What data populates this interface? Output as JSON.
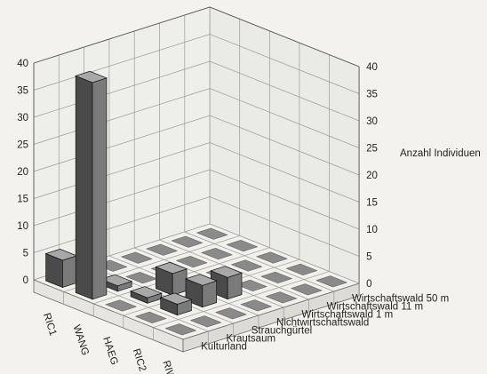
{
  "chart_data": {
    "type": "bar3d",
    "title": "",
    "z_label": "Anzahl Individuen",
    "zlim": [
      0,
      40
    ],
    "z_ticks": [
      0,
      5,
      10,
      15,
      20,
      25,
      30,
      35,
      40
    ],
    "x_categories": [
      "RIC1",
      "WANG",
      "HAEG",
      "RIC2",
      "RIWA"
    ],
    "y_categories": [
      "Kulturland",
      "Krautsaum",
      "Strauchgürtel",
      "Nichtwirtschaftswald",
      "Wirtschaftswald 1 m",
      "Wirtschaftswald 11 m",
      "Wirtschaftswald 50 m"
    ],
    "grid": true,
    "values": [
      [
        5,
        0,
        0,
        0,
        0,
        0,
        0
      ],
      [
        40,
        1,
        0,
        0,
        0,
        0,
        0
      ],
      [
        0,
        1,
        4,
        0,
        0,
        0,
        0
      ],
      [
        0,
        2,
        4,
        4,
        0,
        0,
        0
      ],
      [
        0,
        0,
        0,
        0,
        0,
        0,
        0
      ]
    ],
    "colors": {
      "bar_front": "#4a4a4a",
      "bar_side": "#7a7a7a",
      "bar_top": "#a8a8a8",
      "zero_marker": "#8a8a8a"
    }
  }
}
